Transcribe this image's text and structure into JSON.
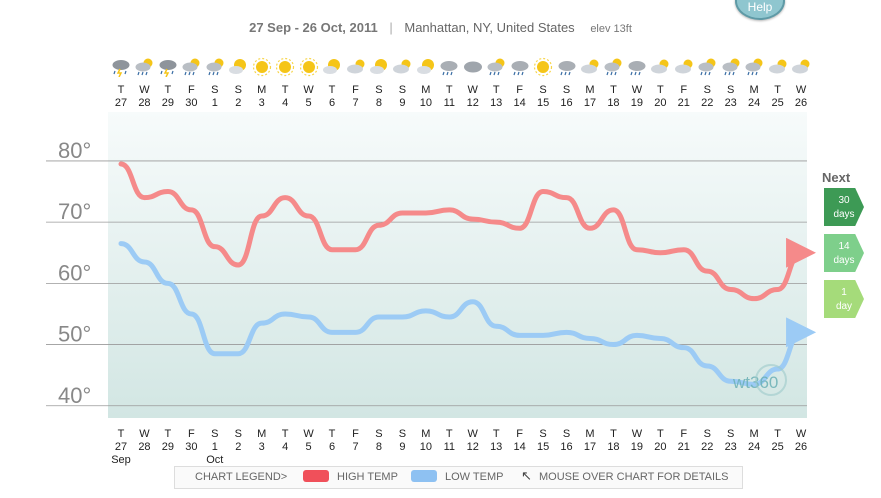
{
  "header": {
    "range": "27 Sep - 26 Oct, 2011",
    "location": "Manhattan, NY, United States",
    "elev": "elev 13ft"
  },
  "help_label": "Help",
  "days": [
    {
      "d": "T",
      "n": "27",
      "icon": "storm"
    },
    {
      "d": "W",
      "n": "28",
      "icon": "rain-sun"
    },
    {
      "d": "T",
      "n": "29",
      "icon": "storm"
    },
    {
      "d": "F",
      "n": "30",
      "icon": "rain-sun"
    },
    {
      "d": "S",
      "n": "1",
      "icon": "rain-sun"
    },
    {
      "d": "S",
      "n": "2",
      "icon": "partly-sunny"
    },
    {
      "d": "M",
      "n": "3",
      "icon": "sun"
    },
    {
      "d": "T",
      "n": "4",
      "icon": "sun"
    },
    {
      "d": "W",
      "n": "5",
      "icon": "sun"
    },
    {
      "d": "T",
      "n": "6",
      "icon": "partly-sunny"
    },
    {
      "d": "F",
      "n": "7",
      "icon": "partly-cloudy"
    },
    {
      "d": "S",
      "n": "8",
      "icon": "partly-sunny"
    },
    {
      "d": "S",
      "n": "9",
      "icon": "partly-cloudy"
    },
    {
      "d": "M",
      "n": "10",
      "icon": "partly-sunny"
    },
    {
      "d": "T",
      "n": "11",
      "icon": "rain"
    },
    {
      "d": "W",
      "n": "12",
      "icon": "cloud"
    },
    {
      "d": "T",
      "n": "13",
      "icon": "rain-sun"
    },
    {
      "d": "F",
      "n": "14",
      "icon": "rain"
    },
    {
      "d": "S",
      "n": "15",
      "icon": "sun"
    },
    {
      "d": "S",
      "n": "16",
      "icon": "rain"
    },
    {
      "d": "M",
      "n": "17",
      "icon": "partly-cloudy"
    },
    {
      "d": "T",
      "n": "18",
      "icon": "rain-sun"
    },
    {
      "d": "W",
      "n": "19",
      "icon": "rain"
    },
    {
      "d": "T",
      "n": "20",
      "icon": "partly-cloudy"
    },
    {
      "d": "F",
      "n": "21",
      "icon": "partly-cloudy"
    },
    {
      "d": "S",
      "n": "22",
      "icon": "rain-sun"
    },
    {
      "d": "S",
      "n": "23",
      "icon": "rain-sun"
    },
    {
      "d": "M",
      "n": "24",
      "icon": "rain-sun"
    },
    {
      "d": "T",
      "n": "25",
      "icon": "partly-cloudy"
    },
    {
      "d": "W",
      "n": "26",
      "icon": "partly-cloudy"
    }
  ],
  "month_labels": [
    "Sep",
    "Oct"
  ],
  "watermark": "wt360",
  "next": {
    "title": "Next",
    "buttons": [
      {
        "line1": "30",
        "line2": "days"
      },
      {
        "line1": "14",
        "line2": "days"
      },
      {
        "line1": "1",
        "line2": "day"
      }
    ]
  },
  "legend": {
    "title": "CHART LEGEND>",
    "high": "HIGH TEMP",
    "low": "LOW TEMP",
    "hint": "MOUSE OVER CHART FOR DETAILS"
  },
  "colors": {
    "high": "#f58a8a",
    "low": "#9ccbf5",
    "high_swatch": "#f0505a",
    "low_swatch": "#8ec1f2"
  },
  "chart_data": {
    "type": "line",
    "categories": [
      "27",
      "28",
      "29",
      "30",
      "1",
      "2",
      "3",
      "4",
      "5",
      "6",
      "7",
      "8",
      "9",
      "10",
      "11",
      "12",
      "13",
      "14",
      "15",
      "16",
      "17",
      "18",
      "19",
      "20",
      "21",
      "22",
      "23",
      "24",
      "25",
      "26"
    ],
    "y_ticks": [
      "40°",
      "50°",
      "60°",
      "70°",
      "80°"
    ],
    "ylim": [
      38,
      88
    ],
    "series": [
      {
        "name": "HIGH TEMP",
        "values": [
          79.5,
          74,
          75,
          72,
          66,
          63,
          71,
          74,
          71,
          65.5,
          65.5,
          69.5,
          71.5,
          71.5,
          72,
          70.5,
          70,
          69,
          75,
          74,
          69,
          72,
          65.5,
          65,
          65.5,
          62,
          59,
          57.5,
          59,
          65
        ]
      },
      {
        "name": "LOW TEMP",
        "values": [
          66.5,
          63.5,
          60,
          55,
          48.5,
          48.5,
          53.5,
          55,
          54.5,
          52,
          52,
          54.5,
          54.5,
          55.5,
          54.5,
          57,
          53,
          51.5,
          51.5,
          52,
          51,
          50,
          51.5,
          51,
          49.5,
          46.5,
          44,
          43.5,
          46,
          52
        ]
      }
    ]
  }
}
